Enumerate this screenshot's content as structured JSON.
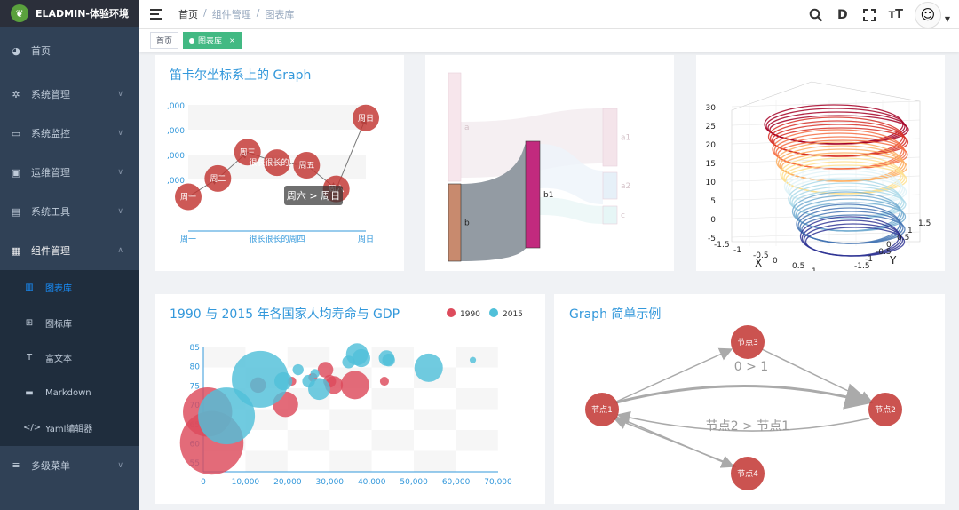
{
  "app": {
    "title": "ELADMIN-体验环境"
  },
  "sidebar": {
    "items": [
      {
        "label": "首页",
        "icon": "dashboard-icon"
      },
      {
        "label": "系统管理",
        "icon": "gear-icon"
      },
      {
        "label": "系统监控",
        "icon": "monitor-icon"
      },
      {
        "label": "运维管理",
        "icon": "server-icon"
      },
      {
        "label": "系统工具",
        "icon": "toolbox-icon"
      },
      {
        "label": "组件管理",
        "icon": "grid-icon"
      },
      {
        "label": "多级菜单",
        "icon": "menu-icon"
      }
    ],
    "sub_items": [
      {
        "label": "图表库",
        "icon": "bar-chart-icon"
      },
      {
        "label": "图标库",
        "icon": "icons-icon"
      },
      {
        "label": "富文本",
        "icon": "richtext-icon"
      },
      {
        "label": "Markdown",
        "icon": "markdown-icon"
      },
      {
        "label": "Yaml编辑器",
        "icon": "code-icon"
      }
    ]
  },
  "breadcrumb": {
    "items": [
      "首页",
      "组件管理",
      "图表库"
    ],
    "separator": "/"
  },
  "tags": {
    "home": "首页",
    "active": "图表库",
    "close": "×"
  },
  "colors": {
    "sidebar": "#304156",
    "submenu": "#1f2d3d",
    "active_menu": "#1890ff",
    "tag_active": "#42b983",
    "title": "#3398db",
    "node": "#c23531",
    "point1990": "#dd4b5c",
    "point2015": "#50c0d9"
  },
  "chart_data": [
    {
      "type": "graph",
      "title": "笛卡尔坐标系上的 Graph",
      "x": [
        "周一",
        "周二",
        "周三",
        "很长很长的周四",
        "周五",
        "周六",
        "周日"
      ],
      "x_ticks_shown": [
        "周一",
        "很长很长的周四",
        "周日"
      ],
      "y_ticks_shown": [
        ",000",
        ",000",
        ",000",
        ",000"
      ],
      "values": [
        650,
        1000,
        1500,
        1300,
        1250,
        800,
        2150
      ],
      "tooltip": "周六 > 周日"
    },
    {
      "type": "sankey",
      "nodes": [
        "a",
        "b",
        "a1",
        "a2",
        "b1",
        "c"
      ]
    },
    {
      "type": "surface3d",
      "x_ticks": [
        "-1.5",
        "-1",
        "-0.5",
        "0",
        "0.5",
        "1",
        "1.5"
      ],
      "y_ticks": [
        "-1.5",
        "-1",
        "-0.5",
        "0",
        "0.5",
        "1",
        "1.5"
      ],
      "z_ticks": [
        "30",
        "25",
        "20",
        "15",
        "10",
        "5",
        "0",
        "-5"
      ],
      "xlabel": "X",
      "ylabel": "Y"
    },
    {
      "type": "scatter",
      "title": "1990 与 2015 年各国家人均寿命与 GDP",
      "legend": [
        "1990",
        "2015"
      ],
      "x_ticks": [
        "0",
        "10,000",
        "20,000",
        "30,000",
        "40,000",
        "50,000",
        "60,000",
        "70,000"
      ],
      "y_ticks": [
        "85",
        "80",
        "75",
        "70",
        "65",
        "60",
        "55"
      ],
      "series": [
        {
          "name": "1990",
          "points": [
            [
              1000,
              68,
              3
            ],
            [
              2000,
              60,
              5
            ],
            [
              13000,
              75,
              0.3
            ],
            [
              19500,
              70,
              0.8
            ],
            [
              26000,
              77,
              0.1
            ],
            [
              29000,
              79,
              0.3
            ],
            [
              30000,
              76,
              0.2
            ],
            [
              31000,
              75,
              0.4
            ],
            [
              36000,
              75,
              1
            ],
            [
              43000,
              76,
              0.1
            ],
            [
              21000,
              76,
              0.1
            ]
          ]
        },
        {
          "name": "2015",
          "points": [
            [
              5500,
              67,
              4
            ],
            [
              13500,
              76.5,
              4
            ],
            [
              19000,
              76,
              0.4
            ],
            [
              22500,
              79,
              0.15
            ],
            [
              25000,
              76,
              0.2
            ],
            [
              27500,
              74,
              0.6
            ],
            [
              34500,
              81,
              0.2
            ],
            [
              36500,
              83,
              0.6
            ],
            [
              37500,
              82,
              0.4
            ],
            [
              43500,
              82,
              0.3
            ],
            [
              44000,
              81.5,
              0.2
            ],
            [
              53500,
              79.5,
              1
            ],
            [
              64000,
              81.5,
              0.05
            ],
            [
              26500,
              78,
              0.1
            ]
          ]
        }
      ]
    },
    {
      "type": "graph",
      "title": "Graph 简单示例",
      "nodes": [
        "节点1",
        "节点2",
        "节点3",
        "节点4"
      ],
      "edge_labels": [
        "0 > 1",
        "节点2 > 节点1"
      ]
    }
  ]
}
